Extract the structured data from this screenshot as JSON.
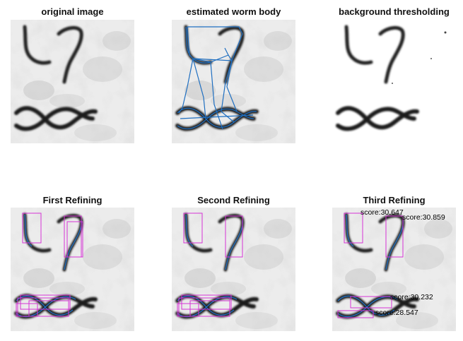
{
  "panels": [
    {
      "title": "original image"
    },
    {
      "title": "estimated worm body"
    },
    {
      "title": "background thresholding"
    },
    {
      "title": "First Refining"
    },
    {
      "title": "Second Refining"
    },
    {
      "title": "Third Refining"
    }
  ],
  "scores": [
    "score:30.647",
    "score:30.859",
    "score:30.232",
    "score:28.547"
  ],
  "colors": {
    "box": "#d633d6",
    "skeleton": "#1f6fc1",
    "worm": "#2a2a2a",
    "background": "#e9e9e9"
  }
}
